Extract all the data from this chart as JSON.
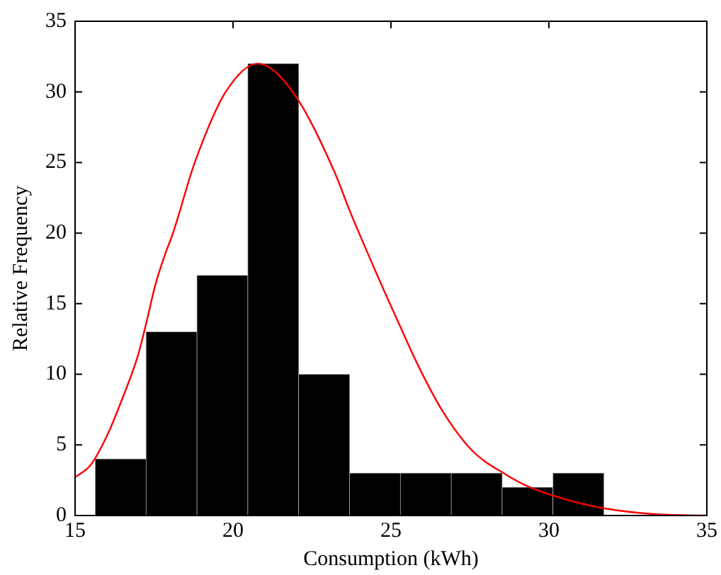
{
  "chart_data": {
    "type": "histogram",
    "xlabel": "Consumption (kWh)",
    "ylabel": "Relative Frequency",
    "bins": [
      15.64,
      17.25,
      18.86,
      20.47,
      22.08,
      23.69,
      25.3,
      26.91,
      28.52,
      30.13,
      31.74
    ],
    "values": [
      4,
      13,
      17,
      32,
      10,
      3,
      3,
      3,
      2,
      3
    ],
    "color": "#000000",
    "series": [
      {
        "type": "line",
        "color": "#ff0000",
        "x": [
          15,
          15.5,
          16,
          16.5,
          17,
          17.24,
          17.55,
          17.85,
          18.1,
          18.79,
          19.77,
          20.79,
          21.89,
          23.18,
          23.71,
          24.55,
          25.23,
          25.91,
          26.66,
          27.57,
          28.64,
          29.4,
          30.6,
          31.77,
          33.33,
          35
        ],
        "values": [
          2.7,
          3.6,
          5.6,
          8.3,
          11.4,
          13.5,
          16.4,
          18.5,
          20,
          25,
          30,
          32,
          30,
          24.5,
          21.5,
          17.1,
          13.7,
          10.4,
          7.3,
          4.6,
          2.9,
          2,
          1.1,
          0.5,
          0.1,
          0
        ]
      }
    ],
    "xlim": [
      15,
      35
    ],
    "xticks": [
      15,
      20,
      25,
      30,
      35
    ],
    "ylim": [
      0,
      35
    ],
    "yticks": [
      0,
      5,
      10,
      15,
      20,
      25,
      30,
      35
    ],
    "grid": false,
    "legend": false,
    "marker": "none",
    "line_style": "solid"
  }
}
